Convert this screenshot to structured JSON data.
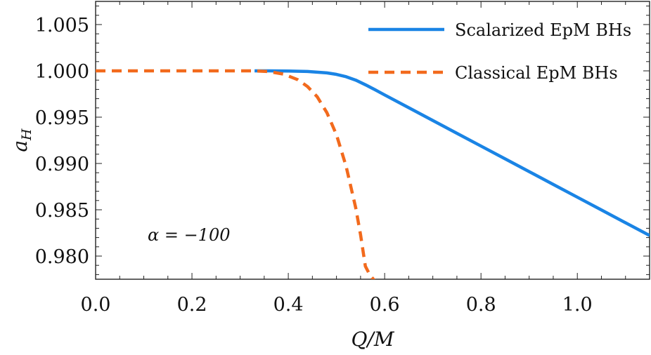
{
  "chart_data": {
    "type": "line",
    "xlabel": "Q/M",
    "ylabel": "a_H",
    "xlim": [
      0.0,
      1.15
    ],
    "ylim": [
      0.9775,
      1.0075
    ],
    "x_ticks": [
      0.0,
      0.2,
      0.4,
      0.6,
      0.8,
      1.0
    ],
    "x_tick_labels": [
      "0.0",
      "0.2",
      "0.4",
      "0.6",
      "0.8",
      "1.0"
    ],
    "y_ticks": [
      0.98,
      0.985,
      0.99,
      0.995,
      1.0,
      1.005
    ],
    "y_tick_labels": [
      "0.980",
      "0.985",
      "0.990",
      "0.995",
      "1.000",
      "1.005"
    ],
    "grid": false,
    "legend_position": "top-right",
    "annotation": "α = −100",
    "series": [
      {
        "name": "Scalarized EpM BHs",
        "color": "#1a84e5",
        "style": "solid",
        "x": [
          0.33,
          0.36,
          0.4,
          0.44,
          0.48,
          0.5,
          0.52,
          0.54,
          0.56,
          0.58,
          0.6,
          0.65,
          0.7,
          0.75,
          0.8,
          0.85,
          0.9,
          0.95,
          1.0,
          1.05,
          1.1,
          1.15
        ],
        "y": [
          1.0,
          1.0,
          0.99998,
          0.99993,
          0.99978,
          0.99962,
          0.99937,
          0.999,
          0.9985,
          0.99796,
          0.9974,
          0.99602,
          0.99464,
          0.99326,
          0.99188,
          0.9905,
          0.98912,
          0.98774,
          0.98636,
          0.98498,
          0.9836,
          0.98222
        ]
      },
      {
        "name": "Classical EpM BHs",
        "color": "#f26a1d",
        "style": "dashed",
        "x": [
          0.0,
          0.05,
          0.1,
          0.15,
          0.2,
          0.25,
          0.3,
          0.33,
          0.36,
          0.39,
          0.42,
          0.44,
          0.46,
          0.48,
          0.5,
          0.52,
          0.54,
          0.55,
          0.56,
          0.565,
          0.57,
          0.575,
          0.578
        ],
        "y": [
          1.0,
          1.0,
          1.0,
          1.0,
          1.0,
          1.0,
          1.0,
          1.0,
          0.99992,
          0.99965,
          0.99904,
          0.9983,
          0.9972,
          0.9955,
          0.9931,
          0.9897,
          0.9852,
          0.9823,
          0.9789,
          0.9784,
          0.9779,
          0.9776,
          0.9774
        ]
      }
    ]
  }
}
